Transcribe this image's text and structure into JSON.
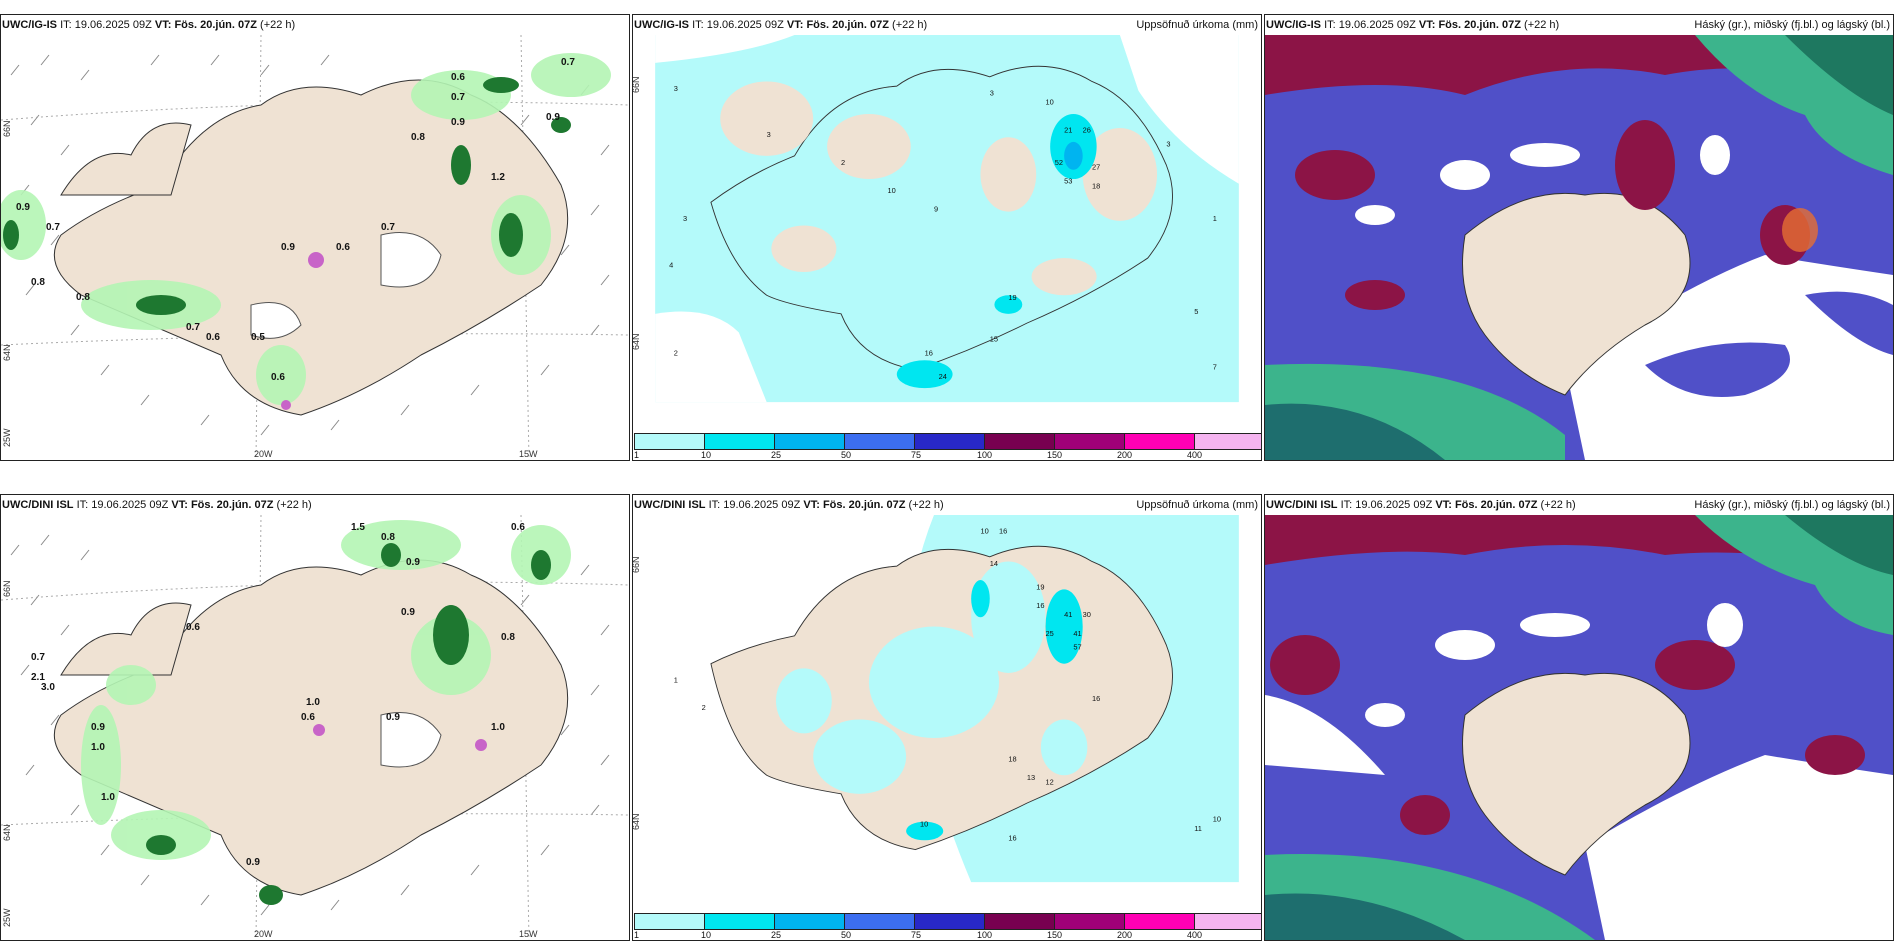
{
  "rows": [
    {
      "panels": [
        {
          "model": "UWC/IG-IS",
          "it_label": "IT:",
          "it_value": "19.06.2025 09Z",
          "vt_label": "VT: Fös. 20.jún. 07Z",
          "lead": "(+22 h)",
          "right_title": "",
          "lon_labels": [
            "20W",
            "15W"
          ],
          "lat_labels": [
            "66N",
            "64N",
            "25W"
          ]
        },
        {
          "model": "UWC/IG-IS",
          "it_label": "IT:",
          "it_value": "19.06.2025 09Z",
          "vt_label": "VT: Fös. 20.jún. 07Z",
          "lead": "(+22 h)",
          "right_title": "Uppsöfnuð úrkoma (mm)",
          "lon_labels": [],
          "lat_labels": [
            "66N",
            "64N"
          ]
        },
        {
          "model": "UWC/IG-IS",
          "it_label": "IT:",
          "it_value": "19.06.2025 09Z",
          "vt_label": "VT: Fös. 20.jún. 07Z",
          "lead": "(+22 h)",
          "right_title": "Háský (gr.), miðský (fj.bl.) og lágský (bl.)",
          "lon_labels": [],
          "lat_labels": []
        }
      ]
    },
    {
      "panels": [
        {
          "model": "UWC/DINI ISL",
          "it_label": "IT:",
          "it_value": "19.06.2025 09Z",
          "vt_label": "VT: Fös. 20.jún. 07Z",
          "lead": "(+22 h)",
          "right_title": "",
          "lon_labels": [
            "20W",
            "15W"
          ],
          "lat_labels": [
            "66N",
            "64N",
            "25W"
          ]
        },
        {
          "model": "UWC/DINI ISL",
          "it_label": "IT:",
          "it_value": "19.06.2025 09Z",
          "vt_label": "VT: Fös. 20.jún. 07Z",
          "lead": "(+22 h)",
          "right_title": "Uppsöfnuð úrkoma (mm)",
          "lon_labels": [],
          "lat_labels": [
            "66N",
            "64N"
          ]
        },
        {
          "model": "UWC/DINI ISL",
          "it_label": "IT:",
          "it_value": "19.06.2025 09Z",
          "vt_label": "VT: Fös. 20.jún. 07Z",
          "lead": "(+22 h)",
          "right_title": "Háský (gr.), miðský (fj.bl.) og lágský (bl.)",
          "lon_labels": [],
          "lat_labels": []
        }
      ]
    }
  ],
  "precip_legend": {
    "labels": [
      "1",
      "10",
      "25",
      "50",
      "75",
      "100",
      "150",
      "200",
      "400"
    ],
    "colors": [
      "#b4fafa",
      "#00e6f0",
      "#00b4f0",
      "#3c6ef0",
      "#2828c8",
      "#780050",
      "#a00078",
      "#ff00b4",
      "#f5b4f0"
    ]
  },
  "colors": {
    "land": "#efe2d3",
    "sea_precip": "#b4fafa",
    "wind_light_green": "#b4f5b4",
    "wind_dark_green": "#1e7830",
    "cloud_high": "#2a2a9a",
    "cloud_mid": "#5050c8",
    "cloud_low_red": "#8c1446",
    "cloud_green": "#3cb48c"
  }
}
